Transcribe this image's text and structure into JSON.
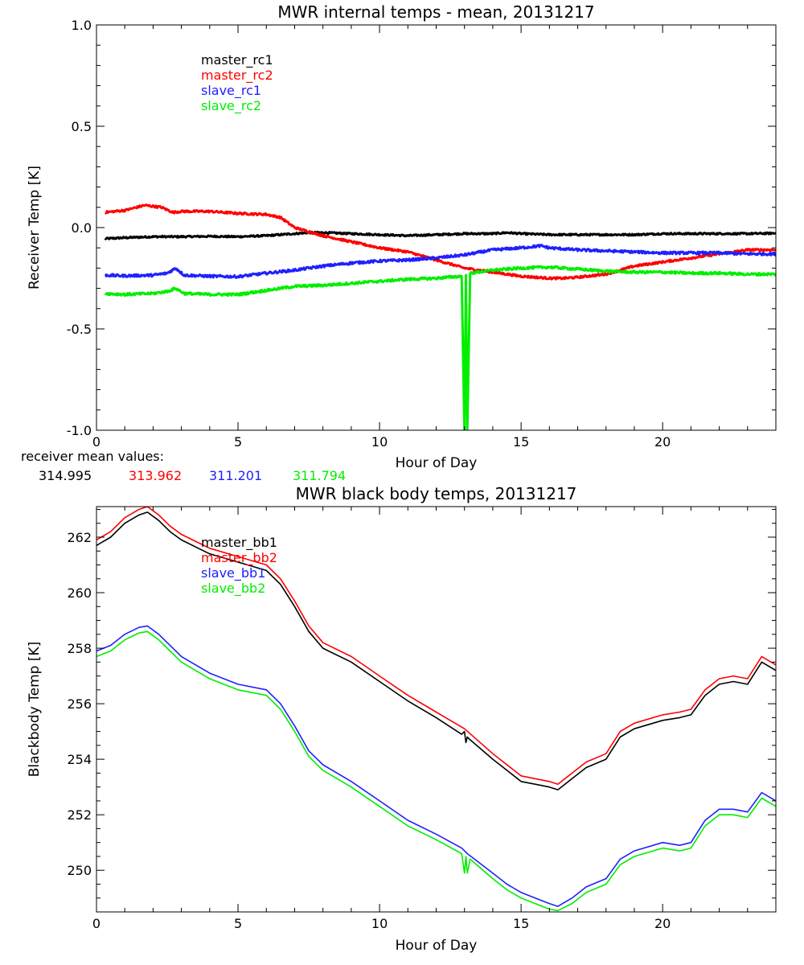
{
  "chart_data": [
    {
      "type": "line",
      "title": "MWR internal temps - mean, 20131217",
      "xlabel": "Hour of Day",
      "ylabel": "Receiver Temp [K]",
      "xlim": [
        0,
        24
      ],
      "ylim": [
        -1.0,
        1.0
      ],
      "xticks": [
        0,
        5,
        10,
        15,
        20
      ],
      "yticks": [
        -1.0,
        -0.5,
        0.0,
        0.5,
        1.0
      ],
      "ytick_labels": [
        "-1.0",
        "-0.5",
        "0.0",
        "0.5",
        "1.0"
      ],
      "xtick_labels": [
        "0",
        "5",
        "10",
        "15",
        "20"
      ],
      "grid": false,
      "legend_position": "top-left",
      "mean_values_label": "receiver mean values:",
      "mean_values": [
        "314.995",
        "313.962",
        "311.201",
        "311.794"
      ],
      "series": [
        {
          "name": "master_rc1",
          "color": "#000000",
          "noise": 0.004,
          "x": [
            0.3,
            1,
            2,
            3,
            4,
            5,
            6,
            7,
            7.5,
            8,
            9,
            10,
            11,
            12,
            13,
            14,
            14.5,
            15,
            16,
            17,
            18,
            19,
            20,
            21,
            22,
            23,
            24
          ],
          "y": [
            -0.055,
            -0.05,
            -0.045,
            -0.045,
            -0.043,
            -0.045,
            -0.04,
            -0.03,
            -0.025,
            -0.025,
            -0.03,
            -0.035,
            -0.04,
            -0.035,
            -0.03,
            -0.03,
            -0.025,
            -0.03,
            -0.035,
            -0.035,
            -0.035,
            -0.035,
            -0.03,
            -0.03,
            -0.03,
            -0.03,
            -0.028
          ]
        },
        {
          "name": "master_rc2",
          "color": "#ff0000",
          "noise": 0.005,
          "x": [
            0.3,
            1,
            1.7,
            2.3,
            2.7,
            3,
            4,
            5,
            6,
            6.5,
            7,
            8,
            9,
            10,
            11,
            12,
            13,
            14,
            15,
            16,
            16.5,
            17,
            18,
            19,
            20,
            21,
            22,
            23,
            24
          ],
          "y": [
            0.075,
            0.085,
            0.11,
            0.1,
            0.075,
            0.08,
            0.08,
            0.07,
            0.065,
            0.05,
            0.0,
            -0.04,
            -0.07,
            -0.1,
            -0.12,
            -0.16,
            -0.2,
            -0.22,
            -0.24,
            -0.25,
            -0.25,
            -0.245,
            -0.23,
            -0.19,
            -0.17,
            -0.15,
            -0.13,
            -0.11,
            -0.11
          ]
        },
        {
          "name": "slave_rc1",
          "color": "#2020ff",
          "noise": 0.006,
          "x": [
            0.3,
            1,
            2,
            2.5,
            2.8,
            3.1,
            4,
            5,
            6,
            7,
            8,
            9,
            10,
            11,
            12,
            13,
            14,
            15,
            15.7,
            16,
            17,
            18,
            19,
            20,
            21,
            22,
            23,
            24
          ],
          "y": [
            -0.235,
            -0.238,
            -0.235,
            -0.225,
            -0.2,
            -0.235,
            -0.24,
            -0.242,
            -0.225,
            -0.21,
            -0.19,
            -0.175,
            -0.165,
            -0.16,
            -0.15,
            -0.135,
            -0.11,
            -0.1,
            -0.09,
            -0.1,
            -0.11,
            -0.115,
            -0.12,
            -0.125,
            -0.125,
            -0.125,
            -0.13,
            -0.13
          ]
        },
        {
          "name": "slave_rc2",
          "color": "#00ee00",
          "noise": 0.006,
          "x": [
            0.3,
            1,
            2,
            2.5,
            2.8,
            3.1,
            4,
            5,
            6,
            7,
            8,
            9,
            10,
            11,
            12,
            12.9,
            13.0,
            13.05,
            13.1,
            13.2,
            14,
            15,
            16,
            17,
            18,
            19,
            20,
            21,
            22,
            23,
            24
          ],
          "y": [
            -0.325,
            -0.33,
            -0.325,
            -0.315,
            -0.3,
            -0.325,
            -0.33,
            -0.33,
            -0.31,
            -0.29,
            -0.285,
            -0.275,
            -0.265,
            -0.255,
            -0.25,
            -0.24,
            -1.0,
            -0.23,
            -1.0,
            -0.225,
            -0.21,
            -0.2,
            -0.195,
            -0.205,
            -0.215,
            -0.22,
            -0.22,
            -0.225,
            -0.225,
            -0.23,
            -0.23
          ]
        }
      ]
    },
    {
      "type": "line",
      "title": "MWR black body temps, 20131217",
      "xlabel": "Hour of Day",
      "ylabel": "Blackbody Temp [K]",
      "xlim": [
        0,
        24
      ],
      "ylim": [
        248.5,
        263.1
      ],
      "xticks": [
        0,
        5,
        10,
        15,
        20
      ],
      "yticks": [
        250,
        252,
        254,
        256,
        258,
        260,
        262
      ],
      "ytick_labels": [
        "250",
        "252",
        "254",
        "256",
        "258",
        "260",
        "262"
      ],
      "xtick_labels": [
        "0",
        "5",
        "10",
        "15",
        "20"
      ],
      "grid": false,
      "legend_position": "top-left",
      "series": [
        {
          "name": "master_bb1",
          "color": "#000000",
          "x": [
            0,
            0.5,
            1,
            1.5,
            1.8,
            2.2,
            2.6,
            3,
            4,
            5,
            6,
            6.5,
            7,
            7.5,
            8,
            9,
            10,
            11,
            12,
            12.9,
            13.0,
            13.05,
            13.1,
            13.2,
            14,
            14.5,
            15,
            15.5,
            16,
            16.3,
            16.8,
            17.3,
            18,
            18.5,
            19,
            20,
            20.6,
            21,
            21.5,
            22,
            22.5,
            23,
            23.5,
            24
          ],
          "y": [
            261.7,
            262.0,
            262.5,
            262.8,
            262.9,
            262.6,
            262.2,
            261.9,
            261.4,
            261.1,
            260.8,
            260.3,
            259.5,
            258.6,
            258.0,
            257.5,
            256.8,
            256.1,
            255.5,
            254.9,
            255.0,
            254.6,
            254.8,
            254.7,
            254.0,
            253.6,
            253.2,
            253.1,
            253.0,
            252.9,
            253.3,
            253.7,
            254.0,
            254.8,
            255.1,
            255.4,
            255.5,
            255.6,
            256.3,
            256.7,
            256.8,
            256.7,
            257.5,
            257.2
          ]
        },
        {
          "name": "master_bb2",
          "color": "#ff0000",
          "x": [
            0,
            0.5,
            1,
            1.5,
            1.8,
            2.2,
            2.6,
            3,
            4,
            5,
            6,
            6.5,
            7,
            7.5,
            8,
            9,
            10,
            11,
            12,
            13,
            14,
            14.5,
            15,
            15.5,
            16,
            16.3,
            16.8,
            17.3,
            18,
            18.5,
            19,
            20,
            20.6,
            21,
            21.5,
            22,
            22.5,
            23,
            23.5,
            24
          ],
          "y": [
            261.9,
            262.2,
            262.7,
            263.0,
            263.1,
            262.8,
            262.4,
            262.1,
            261.6,
            261.3,
            261.0,
            260.5,
            259.7,
            258.8,
            258.2,
            257.7,
            257.0,
            256.3,
            255.7,
            255.1,
            254.2,
            253.8,
            253.4,
            253.3,
            253.2,
            253.1,
            253.5,
            253.9,
            254.2,
            255.0,
            255.3,
            255.6,
            255.7,
            255.8,
            256.5,
            256.9,
            257.0,
            256.9,
            257.7,
            257.4
          ]
        },
        {
          "name": "slave_bb1",
          "color": "#2020ff",
          "x": [
            0,
            0.5,
            1,
            1.5,
            1.8,
            2.2,
            2.6,
            3,
            4,
            5,
            6,
            6.5,
            7,
            7.5,
            8,
            9,
            10,
            11,
            12,
            12.9,
            13.0,
            13.1,
            14,
            14.5,
            15,
            15.5,
            16,
            16.3,
            16.8,
            17.3,
            18,
            18.5,
            19,
            20,
            20.6,
            21,
            21.5,
            22,
            22.5,
            23,
            23.5,
            24
          ],
          "y": [
            257.9,
            258.1,
            258.5,
            258.75,
            258.8,
            258.5,
            258.1,
            257.7,
            257.1,
            256.7,
            256.5,
            256.0,
            255.2,
            254.3,
            253.8,
            253.2,
            252.5,
            251.8,
            251.3,
            250.8,
            250.7,
            250.6,
            249.9,
            249.5,
            249.2,
            249.0,
            248.8,
            248.7,
            249.0,
            249.4,
            249.7,
            250.4,
            250.7,
            251.0,
            250.9,
            251.0,
            251.8,
            252.2,
            252.2,
            252.1,
            252.8,
            252.5
          ]
        },
        {
          "name": "slave_bb2",
          "color": "#00ee00",
          "x": [
            0,
            0.5,
            1,
            1.5,
            1.8,
            2.2,
            2.6,
            3,
            4,
            5,
            6,
            6.5,
            7,
            7.5,
            8,
            9,
            10,
            11,
            12,
            12.9,
            13.0,
            13.05,
            13.1,
            13.2,
            14,
            14.5,
            15,
            15.5,
            16,
            16.3,
            16.8,
            17.3,
            18,
            18.5,
            19,
            20,
            20.6,
            21,
            21.5,
            22,
            22.5,
            23,
            23.5,
            24
          ],
          "y": [
            257.7,
            257.9,
            258.3,
            258.55,
            258.6,
            258.3,
            257.9,
            257.5,
            256.9,
            256.5,
            256.3,
            255.8,
            255.0,
            254.1,
            253.6,
            253.0,
            252.3,
            251.6,
            251.1,
            250.6,
            249.9,
            250.5,
            249.9,
            250.4,
            249.7,
            249.3,
            249.0,
            248.8,
            248.6,
            248.55,
            248.8,
            249.2,
            249.5,
            250.2,
            250.5,
            250.8,
            250.7,
            250.8,
            251.6,
            252.0,
            252.0,
            251.9,
            252.6,
            252.3
          ]
        }
      ]
    }
  ]
}
